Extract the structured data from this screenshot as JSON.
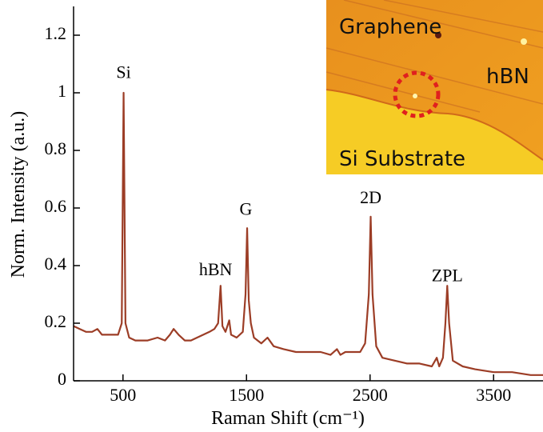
{
  "chart_data": {
    "type": "line",
    "xlabel": "Raman Shift (cm⁻¹)",
    "ylabel": "Norm. Intensity (a.u.)",
    "xlim": [
      100,
      3900
    ],
    "ylim": [
      0,
      1.3
    ],
    "xticks": [
      500,
      1500,
      2500,
      3500
    ],
    "yticks": [
      0,
      0.2,
      0.4,
      0.6,
      0.8,
      1,
      1.2
    ],
    "grid": false,
    "series": [
      {
        "color": "#9c3d26",
        "x": [
          100,
          150,
          200,
          250,
          293,
          330,
          400,
          460,
          490,
          505,
          520,
          550,
          600,
          700,
          780,
          840,
          880,
          910,
          950,
          1000,
          1050,
          1100,
          1150,
          1200,
          1240,
          1270,
          1290,
          1305,
          1330,
          1360,
          1375,
          1420,
          1470,
          1492,
          1505,
          1518,
          1535,
          1560,
          1620,
          1670,
          1720,
          1800,
          1900,
          2000,
          2100,
          2180,
          2232,
          2260,
          2300,
          2350,
          2420,
          2460,
          2490,
          2505,
          2520,
          2550,
          2600,
          2700,
          2800,
          2900,
          3000,
          3040,
          3060,
          3090,
          3110,
          3125,
          3140,
          3170,
          3250,
          3350,
          3500,
          3650,
          3800,
          3900
        ],
        "values": [
          0.19,
          0.18,
          0.17,
          0.17,
          0.18,
          0.16,
          0.16,
          0.16,
          0.2,
          1.0,
          0.2,
          0.15,
          0.14,
          0.14,
          0.15,
          0.14,
          0.16,
          0.18,
          0.16,
          0.14,
          0.14,
          0.15,
          0.16,
          0.17,
          0.18,
          0.2,
          0.33,
          0.19,
          0.17,
          0.21,
          0.16,
          0.15,
          0.17,
          0.3,
          0.53,
          0.28,
          0.2,
          0.15,
          0.13,
          0.15,
          0.12,
          0.11,
          0.1,
          0.1,
          0.1,
          0.09,
          0.11,
          0.09,
          0.1,
          0.1,
          0.1,
          0.13,
          0.3,
          0.57,
          0.3,
          0.12,
          0.08,
          0.07,
          0.06,
          0.06,
          0.05,
          0.08,
          0.05,
          0.08,
          0.2,
          0.33,
          0.2,
          0.07,
          0.05,
          0.04,
          0.03,
          0.03,
          0.02,
          0.02
        ]
      }
    ],
    "annotations": [
      {
        "text": "Si",
        "x": 505,
        "y": 1.065
      },
      {
        "text": "hBN",
        "x": 1250,
        "y": 0.38
      },
      {
        "text": "G",
        "x": 1495,
        "y": 0.59
      },
      {
        "text": "2D",
        "x": 2505,
        "y": 0.63
      },
      {
        "text": "ZPL",
        "x": 3125,
        "y": 0.36
      }
    ],
    "inset_labels": [
      "Graphene",
      "hBN",
      "Si Substrate"
    ]
  }
}
